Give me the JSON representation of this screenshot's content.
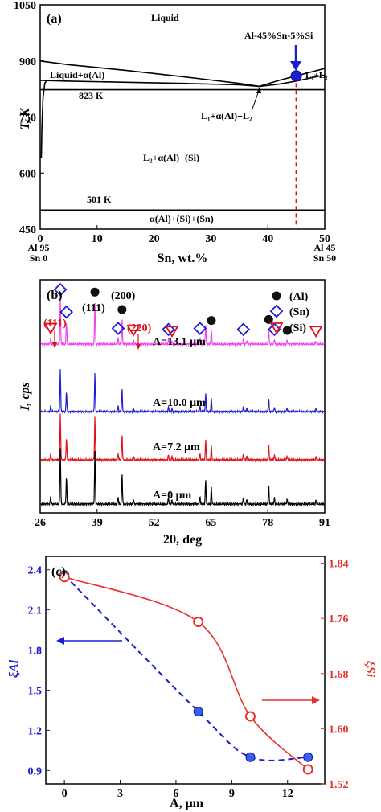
{
  "chart_data": [
    {
      "type": "line",
      "panel": "(a)",
      "xlabel": "Sn, wt.%",
      "ylabel": "T, K",
      "xlim": [
        0,
        50
      ],
      "ylim": [
        450,
        1050
      ],
      "x_ticks": [
        "0",
        "10",
        "20",
        "30",
        "40",
        "50"
      ],
      "y_ticks": [
        "450",
        "600",
        "750",
        "900",
        "1050"
      ],
      "x_left_label": [
        "Al 95",
        "Sn 0"
      ],
      "x_right_label": [
        "Al 45",
        "Sn 50"
      ],
      "regions": [
        "Liquid",
        "Liquid+α(Al)",
        "L₁+α(Al)+L₂",
        "L₂+α(Al)+(Si)",
        "α(Al)+(Si)+(Sn)",
        "L₁+L₂"
      ],
      "isotherms": [
        {
          "label": "823 K",
          "y": 823
        },
        {
          "label": "501 K",
          "y": 501
        }
      ],
      "point": {
        "label": "Al-45%Sn-5%Si",
        "x": 45,
        "y": 860
      },
      "marker_line_x": 45,
      "curves": [
        {
          "x": [
            0,
            5,
            15,
            25,
            35,
            38.5
          ],
          "y": [
            900,
            890,
            875,
            858,
            840,
            832
          ]
        },
        {
          "x": [
            0,
            5,
            15,
            25,
            35,
            38.5
          ],
          "y": [
            848,
            846,
            843,
            840,
            836,
            832
          ]
        },
        {
          "x": [
            38.5,
            42,
            45,
            48,
            50
          ],
          "y": [
            832,
            848,
            860,
            872,
            880
          ]
        },
        {
          "x": [
            38.5,
            42,
            45,
            48,
            50
          ],
          "y": [
            832,
            838,
            846,
            856,
            862
          ]
        },
        {
          "x": [
            0.2,
            0.3,
            0.5,
            0.8,
            1.2
          ],
          "y": [
            640,
            720,
            800,
            840,
            850
          ]
        }
      ]
    },
    {
      "type": "line",
      "panel": "(b)",
      "xlabel": "2θ, deg",
      "ylabel": "I, cps",
      "xlim": [
        26,
        91
      ],
      "x_ticks": [
        "26",
        "39",
        "52",
        "65",
        "78",
        "91"
      ],
      "legend": [
        "(Al)",
        "(Sn)",
        "(Si)"
      ],
      "legend_position": "top-right",
      "peak_labels": [
        "(111)",
        "(200)",
        "(111)",
        "(220)"
      ],
      "series": [
        {
          "name": "A=13.1 μm",
          "color": "#ee44ee"
        },
        {
          "name": "A=10.0 μm",
          "color": "#1c1cd0"
        },
        {
          "name": "A=7.2 μm",
          "color": "#e0101c"
        },
        {
          "name": "A=0 μm",
          "color": "#000000"
        }
      ],
      "peaks": [
        {
          "x": 28.4,
          "h": 0.12
        },
        {
          "x": 30.6,
          "h": 0.9
        },
        {
          "x": 32.0,
          "h": 0.45
        },
        {
          "x": 38.5,
          "h": 0.85
        },
        {
          "x": 43.8,
          "h": 0.12
        },
        {
          "x": 44.7,
          "h": 0.5
        },
        {
          "x": 47.3,
          "h": 0.08
        },
        {
          "x": 55.3,
          "h": 0.1
        },
        {
          "x": 56.1,
          "h": 0.06
        },
        {
          "x": 62.5,
          "h": 0.12
        },
        {
          "x": 63.8,
          "h": 0.4
        },
        {
          "x": 65.1,
          "h": 0.28
        },
        {
          "x": 72.4,
          "h": 0.1
        },
        {
          "x": 73.2,
          "h": 0.07
        },
        {
          "x": 78.2,
          "h": 0.3
        },
        {
          "x": 79.5,
          "h": 0.1
        },
        {
          "x": 82.4,
          "h": 0.08
        },
        {
          "x": 89.0,
          "h": 0.06
        }
      ],
      "markers": {
        "Al": [
          38.5,
          44.7,
          65.1,
          78.2,
          82.4
        ],
        "Sn": [
          30.6,
          32.0,
          43.8,
          55.3,
          62.5,
          72.4,
          79.5
        ],
        "Si": [
          28.4,
          47.3,
          56.1,
          89.0
        ]
      }
    },
    {
      "type": "line",
      "panel": "(c)",
      "xlabel": "A, μm",
      "ylabel_left": "ξAl",
      "ylabel_right": "ξSi",
      "xlim": [
        -1,
        14
      ],
      "ylim_left": [
        0.8,
        2.5
      ],
      "ylim_right": [
        1.52,
        1.85
      ],
      "x_ticks": [
        "0",
        "3",
        "6",
        "9",
        "12"
      ],
      "y_ticks_left": [
        "0.9",
        "1.2",
        "1.5",
        "1.8",
        "2.1",
        "2.4"
      ],
      "y_ticks_right": [
        "1.52",
        "1.60",
        "1.68",
        "1.76",
        "1.84"
      ],
      "series": [
        {
          "axis": "left",
          "color": "#1c1cd0",
          "x": [
            0,
            7.2,
            10.0,
            13.1
          ],
          "y": [
            2.36,
            1.34,
            1.0,
            1.0
          ]
        },
        {
          "axis": "right",
          "color": "#e8302c",
          "x": [
            0,
            7.2,
            10.0,
            13.1
          ],
          "y": [
            1.82,
            1.755,
            1.618,
            1.541
          ]
        }
      ]
    }
  ]
}
